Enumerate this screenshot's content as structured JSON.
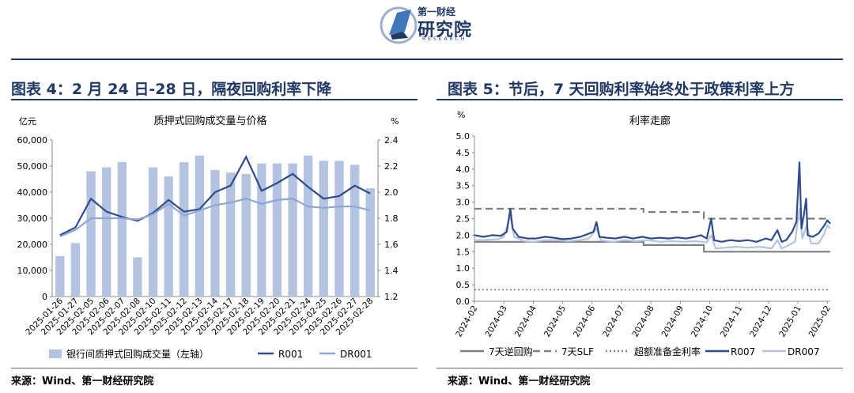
{
  "header": {
    "logo_small": "第一财经",
    "logo_big": "研究院",
    "logo_sub": "RESEARCH"
  },
  "left_panel": {
    "section_title": "图表 4：2 月 24 日-28 日，隔夜回购利率下降",
    "source": "来源：Wind、第一财经研究院"
  },
  "right_panel": {
    "section_title": "图表 5：节后，7 天回购利率始终处于政策利率上方",
    "source": "来源：Wind、第一财经研究院"
  },
  "chart_data": [
    {
      "type": "bar",
      "title": "质押式回购成交量与价格",
      "ylabel_left": "亿元",
      "ylabel_right": "%",
      "ylim_left": [
        0,
        60000
      ],
      "ylim_right": [
        1.2,
        2.4
      ],
      "yticks_left": [
        "0",
        "10,000",
        "20,000",
        "30,000",
        "40,000",
        "50,000",
        "60,000"
      ],
      "yticks_right": [
        "1.2",
        "1.4",
        "1.6",
        "1.8",
        "2.0",
        "2.2",
        "2.4"
      ],
      "categories": [
        "2025-01-26",
        "2025-01-27",
        "2025-02-05",
        "2025-02-06",
        "2025-02-07",
        "2025-02-08",
        "2025-02-10",
        "2025-02-11",
        "2025-02-12",
        "2025-02-13",
        "2025-02-14",
        "2025-02-17",
        "2025-02-18",
        "2025-02-19",
        "2025-02-20",
        "2025-02-21",
        "2025-02-24",
        "2025-02-25",
        "2025-02-26",
        "2025-02-27",
        "2025-02-28"
      ],
      "series": [
        {
          "name": "银行间质押式回购成交量（左轴）",
          "kind": "bar",
          "axis": "left",
          "color": "#b4c3e0",
          "values": [
            15500,
            20500,
            48000,
            49500,
            51500,
            15000,
            49500,
            46000,
            51500,
            54000,
            48500,
            47500,
            47000,
            51000,
            51000,
            51000,
            54000,
            52000,
            52000,
            50500,
            41500
          ]
        },
        {
          "name": "R001",
          "kind": "line",
          "axis": "right",
          "color": "#2e4c8a",
          "values": [
            1.67,
            1.73,
            1.95,
            1.85,
            1.81,
            1.78,
            1.84,
            1.94,
            1.85,
            1.87,
            2.0,
            2.05,
            2.27,
            2.01,
            2.07,
            2.14,
            2.04,
            1.95,
            1.97,
            2.05,
            1.99
          ]
        },
        {
          "name": "DR001",
          "kind": "line",
          "axis": "right",
          "color": "#8ea5d6",
          "values": [
            1.66,
            1.71,
            1.8,
            1.8,
            1.8,
            1.79,
            1.83,
            1.91,
            1.82,
            1.86,
            1.9,
            1.92,
            1.95,
            1.91,
            1.94,
            1.95,
            1.89,
            1.88,
            1.89,
            1.89,
            1.86
          ]
        }
      ]
    },
    {
      "type": "line",
      "title": "利率走廊",
      "ylabel": "%",
      "ylim": [
        0,
        5
      ],
      "yticks": [
        "0.0",
        "0.5",
        "1.0",
        "1.5",
        "2.0",
        "2.5",
        "3.0",
        "3.5",
        "4.0",
        "4.5",
        "5.0"
      ],
      "xticks": [
        "2024-02",
        "2024-03",
        "2024-04",
        "2024-05",
        "2024-06",
        "2024-07",
        "2024-08",
        "2024-09",
        "2024-10",
        "2024-11",
        "2024-12",
        "2025-01",
        "2025-02"
      ],
      "x_range": [
        0,
        12.1
      ],
      "series": [
        {
          "name": "7天逆回购",
          "style": "solid",
          "color": "#7f7f7f",
          "points": [
            [
              0,
              1.8
            ],
            [
              5.75,
              1.8
            ],
            [
              5.75,
              1.7
            ],
            [
              7.8,
              1.7
            ],
            [
              7.8,
              1.5
            ],
            [
              12.1,
              1.5
            ]
          ]
        },
        {
          "name": "7天SLF",
          "style": "dashed",
          "color": "#7f7f7f",
          "points": [
            [
              0,
              2.8
            ],
            [
              5.75,
              2.8
            ],
            [
              5.75,
              2.7
            ],
            [
              7.8,
              2.7
            ],
            [
              7.8,
              2.5
            ],
            [
              12.1,
              2.5
            ]
          ]
        },
        {
          "name": "超额准备金利率",
          "style": "dotted",
          "color": "#7f7f7f",
          "points": [
            [
              0,
              0.35
            ],
            [
              12.1,
              0.35
            ]
          ]
        },
        {
          "name": "R007",
          "style": "solid",
          "color": "#2e4c8a",
          "points": [
            [
              0,
              2.0
            ],
            [
              0.3,
              1.95
            ],
            [
              0.6,
              2.0
            ],
            [
              0.9,
              1.98
            ],
            [
              1.1,
              2.1
            ],
            [
              1.22,
              2.8
            ],
            [
              1.3,
              2.2
            ],
            [
              1.5,
              1.95
            ],
            [
              1.8,
              1.9
            ],
            [
              2.1,
              1.9
            ],
            [
              2.4,
              1.95
            ],
            [
              2.7,
              1.92
            ],
            [
              3.0,
              1.88
            ],
            [
              3.3,
              1.9
            ],
            [
              3.6,
              1.95
            ],
            [
              3.9,
              2.05
            ],
            [
              4.05,
              2.1
            ],
            [
              4.15,
              2.4
            ],
            [
              4.25,
              1.95
            ],
            [
              4.5,
              1.92
            ],
            [
              4.8,
              1.9
            ],
            [
              5.1,
              1.95
            ],
            [
              5.4,
              1.9
            ],
            [
              5.7,
              1.95
            ],
            [
              6.0,
              1.9
            ],
            [
              6.3,
              1.92
            ],
            [
              6.6,
              1.9
            ],
            [
              6.9,
              1.93
            ],
            [
              7.2,
              1.9
            ],
            [
              7.5,
              1.95
            ],
            [
              7.7,
              2.0
            ],
            [
              7.9,
              1.9
            ],
            [
              8.05,
              2.5
            ],
            [
              8.15,
              1.85
            ],
            [
              8.4,
              1.8
            ],
            [
              8.7,
              1.85
            ],
            [
              9.0,
              1.82
            ],
            [
              9.3,
              1.85
            ],
            [
              9.6,
              1.8
            ],
            [
              9.9,
              1.9
            ],
            [
              10.1,
              1.85
            ],
            [
              10.3,
              2.15
            ],
            [
              10.45,
              1.8
            ],
            [
              10.6,
              1.85
            ],
            [
              10.8,
              2.1
            ],
            [
              10.95,
              2.4
            ],
            [
              11.05,
              4.2
            ],
            [
              11.12,
              2.2
            ],
            [
              11.2,
              2.6
            ],
            [
              11.28,
              3.1
            ],
            [
              11.33,
              2.0
            ],
            [
              11.5,
              1.95
            ],
            [
              11.7,
              2.05
            ],
            [
              11.9,
              2.3
            ],
            [
              12.0,
              2.45
            ],
            [
              12.1,
              2.35
            ]
          ]
        },
        {
          "name": "DR007",
          "style": "solid",
          "color": "#b4c3e0",
          "points": [
            [
              0,
              1.85
            ],
            [
              0.4,
              1.85
            ],
            [
              0.8,
              1.88
            ],
            [
              1.0,
              1.95
            ],
            [
              1.22,
              2.6
            ],
            [
              1.35,
              1.95
            ],
            [
              1.7,
              1.82
            ],
            [
              2.0,
              1.8
            ],
            [
              2.4,
              1.85
            ],
            [
              2.8,
              1.85
            ],
            [
              3.2,
              1.82
            ],
            [
              3.6,
              1.85
            ],
            [
              3.9,
              1.9
            ],
            [
              4.15,
              2.2
            ],
            [
              4.3,
              1.85
            ],
            [
              4.7,
              1.8
            ],
            [
              5.1,
              1.85
            ],
            [
              5.5,
              1.82
            ],
            [
              5.9,
              1.85
            ],
            [
              6.3,
              1.8
            ],
            [
              6.7,
              1.82
            ],
            [
              7.1,
              1.8
            ],
            [
              7.5,
              1.82
            ],
            [
              7.9,
              1.78
            ],
            [
              8.05,
              2.0
            ],
            [
              8.2,
              1.6
            ],
            [
              8.5,
              1.62
            ],
            [
              8.9,
              1.65
            ],
            [
              9.3,
              1.62
            ],
            [
              9.7,
              1.65
            ],
            [
              10.1,
              1.6
            ],
            [
              10.3,
              1.85
            ],
            [
              10.45,
              1.6
            ],
            [
              10.7,
              1.7
            ],
            [
              10.9,
              1.8
            ],
            [
              11.05,
              2.8
            ],
            [
              11.15,
              1.9
            ],
            [
              11.3,
              2.3
            ],
            [
              11.45,
              1.75
            ],
            [
              11.7,
              1.75
            ],
            [
              11.9,
              2.05
            ],
            [
              12.0,
              2.3
            ],
            [
              12.1,
              2.2
            ]
          ]
        }
      ]
    }
  ]
}
